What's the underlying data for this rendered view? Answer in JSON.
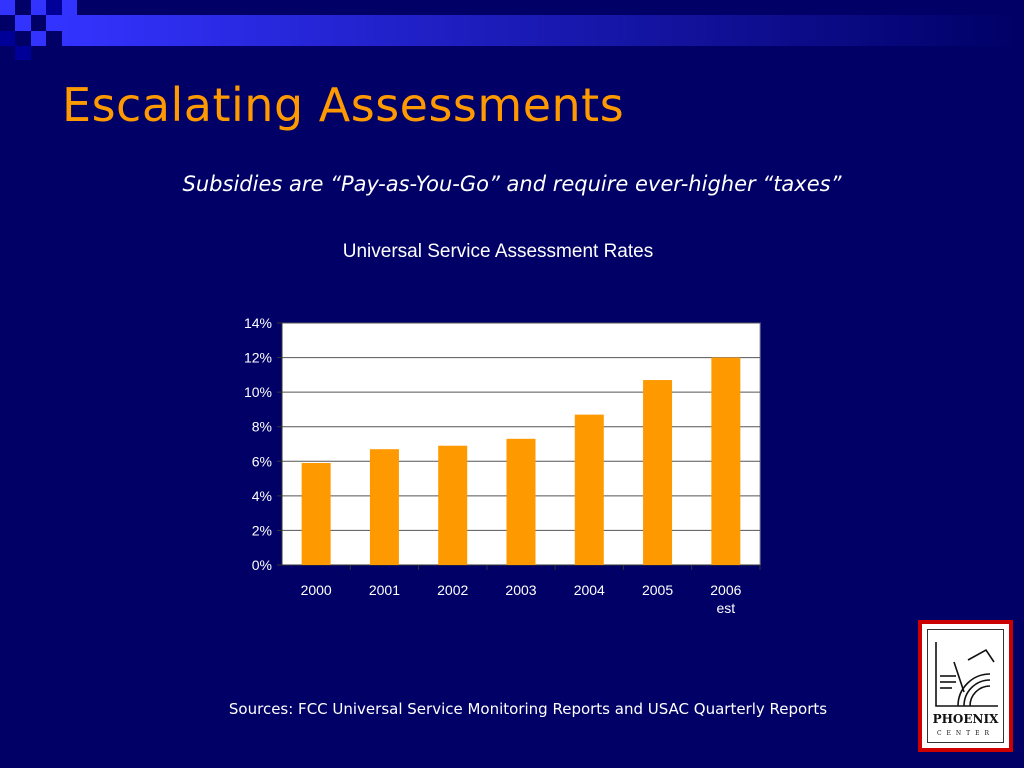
{
  "slide": {
    "title": "Escalating Assessments",
    "subtitle": "Subsidies are “Pay-as-You-Go” and require ever-higher “taxes”",
    "sources": "Sources:  FCC Universal Service Monitoring Reports and USAC Quarterly Reports"
  },
  "logo": {
    "name": "PHOENIX",
    "sub": "CENTER"
  },
  "colors": {
    "background": "#000066",
    "title": "#ff9900",
    "bar": "#ff9900",
    "logo_border": "#cc0000"
  },
  "chart_data": {
    "type": "bar",
    "title": "Universal Service Assessment Rates",
    "xlabel": "",
    "ylabel": "",
    "categories": [
      "2000",
      "2001",
      "2002",
      "2003",
      "2004",
      "2005",
      "2006\nest"
    ],
    "values": [
      5.9,
      6.7,
      6.9,
      7.3,
      8.7,
      10.7,
      12.0
    ],
    "ylim": [
      0,
      14
    ],
    "yticks": [
      0,
      2,
      4,
      6,
      8,
      10,
      12,
      14
    ],
    "ytick_format": "%",
    "grid": true,
    "legend": "none",
    "plot_background": "#ffffff"
  }
}
